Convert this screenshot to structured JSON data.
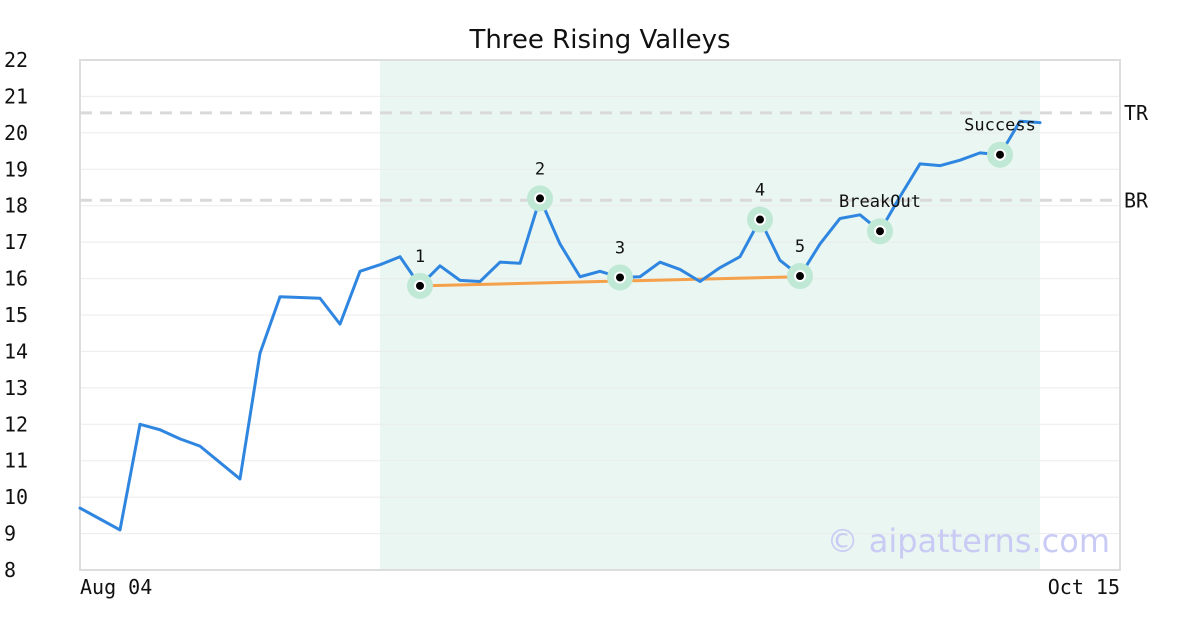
{
  "chart_data": {
    "type": "line",
    "title": "Three Rising Valleys",
    "xlabel": "",
    "ylabel": "",
    "ylim": [
      8,
      22
    ],
    "yticks": [
      8,
      9,
      10,
      11,
      12,
      13,
      14,
      15,
      16,
      17,
      18,
      19,
      20,
      21,
      22
    ],
    "xtick_labels": [
      {
        "index": 0,
        "label": "Aug 04"
      },
      {
        "index": 48,
        "label": "Oct 15"
      }
    ],
    "grid": true,
    "series": [
      {
        "values": [
          9.7,
          9.4,
          9.1,
          12.0,
          11.85,
          11.6,
          11.4,
          10.95,
          10.5,
          13.95,
          15.5,
          15.48,
          15.46,
          14.75,
          16.2,
          16.38,
          16.6,
          15.8,
          16.35,
          15.95,
          15.92,
          16.45,
          16.42,
          18.2,
          16.95,
          16.05,
          16.2,
          16.03,
          16.05,
          16.45,
          16.25,
          15.92,
          16.3,
          16.6,
          17.62,
          16.5,
          16.07,
          16.95,
          17.65,
          17.75,
          17.3,
          18.25,
          19.15,
          19.1,
          19.25,
          19.45,
          19.4,
          20.32,
          20.28
        ],
        "color": "#2f86e0"
      }
    ],
    "highlight_range": {
      "start_index": 15,
      "end_index": 48,
      "color": "#eaf6f1"
    },
    "levels": [
      {
        "label": "TR",
        "value": 20.55
      },
      {
        "label": "BR",
        "value": 18.15
      }
    ],
    "trendline": {
      "from": {
        "index": 17,
        "value": 15.8
      },
      "to": {
        "index": 36,
        "value": 16.05
      },
      "color": "#f5a04a"
    },
    "key_points": [
      {
        "label": "1",
        "index": 17,
        "value": 15.8
      },
      {
        "label": "2",
        "index": 23,
        "value": 18.2
      },
      {
        "label": "3",
        "index": 27,
        "value": 16.03
      },
      {
        "label": "4",
        "index": 34,
        "value": 17.62
      },
      {
        "label": "5",
        "index": 36,
        "value": 16.07
      },
      {
        "label": "BreakOut",
        "index": 40,
        "value": 17.3
      },
      {
        "label": "Success",
        "index": 46,
        "value": 19.4
      }
    ]
  },
  "watermark": "© aipatterns.com",
  "colors": {
    "line": "#2f86e0",
    "trendline": "#f5a04a",
    "marker_halo": "#bfe8d5",
    "level_line": "#d9d9d9",
    "grid": "#ebebeb",
    "frame": "#dddddd"
  }
}
